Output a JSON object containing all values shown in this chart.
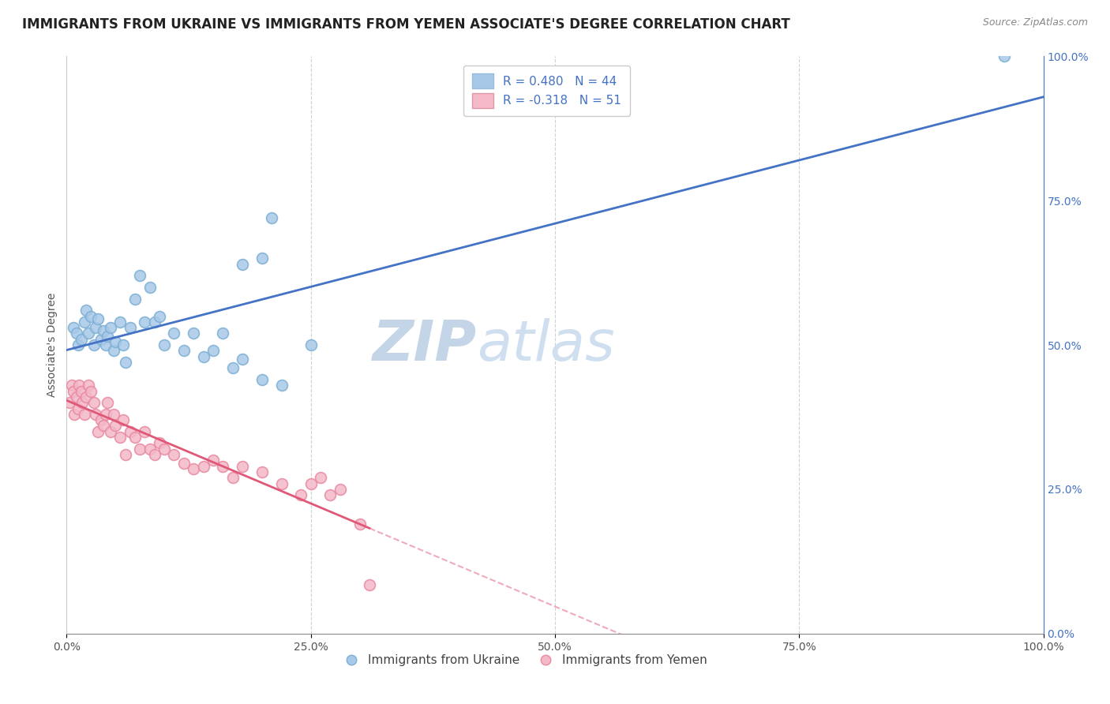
{
  "title": "IMMIGRANTS FROM UKRAINE VS IMMIGRANTS FROM YEMEN ASSOCIATE'S DEGREE CORRELATION CHART",
  "source_text": "Source: ZipAtlas.com",
  "ylabel": "Associate's Degree",
  "watermark_zip": "ZIP",
  "watermark_atlas": "atlas",
  "ukraine_R": 0.48,
  "ukraine_N": 44,
  "yemen_R": -0.318,
  "yemen_N": 51,
  "ukraine_color": "#a8c8e8",
  "ukraine_line_color": "#4472c4",
  "ukraine_edge_color": "#7bafd4",
  "yemen_color": "#f4b8c8",
  "yemen_line_color": "#e05878",
  "yemen_edge_color": "#e888a0",
  "xlim": [
    0.0,
    1.0
  ],
  "ylim": [
    0.0,
    1.0
  ],
  "xtick_labels": [
    "0.0%",
    "25.0%",
    "50.0%",
    "75.0%",
    "100.0%"
  ],
  "xtick_vals": [
    0.0,
    0.25,
    0.5,
    0.75,
    1.0
  ],
  "ytick_labels_right": [
    "0.0%",
    "25.0%",
    "50.0%",
    "75.0%",
    "100.0%"
  ],
  "ytick_vals": [
    0.0,
    0.25,
    0.5,
    0.75,
    1.0
  ],
  "ukraine_x": [
    0.007,
    0.01,
    0.012,
    0.015,
    0.018,
    0.02,
    0.022,
    0.025,
    0.028,
    0.03,
    0.032,
    0.035,
    0.038,
    0.04,
    0.042,
    0.045,
    0.048,
    0.05,
    0.055,
    0.058,
    0.06,
    0.065,
    0.07,
    0.075,
    0.08,
    0.085,
    0.09,
    0.095,
    0.1,
    0.11,
    0.12,
    0.13,
    0.14,
    0.15,
    0.16,
    0.17,
    0.18,
    0.2,
    0.22,
    0.25,
    0.18,
    0.2,
    0.21,
    0.96
  ],
  "ukraine_y": [
    0.53,
    0.52,
    0.5,
    0.51,
    0.54,
    0.56,
    0.52,
    0.55,
    0.5,
    0.53,
    0.545,
    0.51,
    0.525,
    0.5,
    0.515,
    0.53,
    0.49,
    0.505,
    0.54,
    0.5,
    0.47,
    0.53,
    0.58,
    0.62,
    0.54,
    0.6,
    0.54,
    0.55,
    0.5,
    0.52,
    0.49,
    0.52,
    0.48,
    0.49,
    0.52,
    0.46,
    0.475,
    0.44,
    0.43,
    0.5,
    0.64,
    0.65,
    0.72,
    1.0
  ],
  "yemen_x": [
    0.003,
    0.005,
    0.007,
    0.008,
    0.01,
    0.012,
    0.013,
    0.015,
    0.016,
    0.018,
    0.02,
    0.022,
    0.025,
    0.028,
    0.03,
    0.032,
    0.035,
    0.038,
    0.04,
    0.042,
    0.045,
    0.048,
    0.05,
    0.055,
    0.058,
    0.06,
    0.065,
    0.07,
    0.075,
    0.08,
    0.085,
    0.09,
    0.095,
    0.1,
    0.11,
    0.12,
    0.13,
    0.14,
    0.15,
    0.16,
    0.17,
    0.18,
    0.2,
    0.22,
    0.24,
    0.25,
    0.26,
    0.27,
    0.28,
    0.3,
    0.31
  ],
  "yemen_y": [
    0.4,
    0.43,
    0.42,
    0.38,
    0.41,
    0.39,
    0.43,
    0.42,
    0.4,
    0.38,
    0.41,
    0.43,
    0.42,
    0.4,
    0.38,
    0.35,
    0.37,
    0.36,
    0.38,
    0.4,
    0.35,
    0.38,
    0.36,
    0.34,
    0.37,
    0.31,
    0.35,
    0.34,
    0.32,
    0.35,
    0.32,
    0.31,
    0.33,
    0.32,
    0.31,
    0.295,
    0.285,
    0.29,
    0.3,
    0.29,
    0.27,
    0.29,
    0.28,
    0.26,
    0.24,
    0.26,
    0.27,
    0.24,
    0.25,
    0.19,
    0.085
  ],
  "background_color": "#ffffff",
  "grid_color": "#cccccc",
  "legend_ukraine_label": "R = 0.480   N = 44",
  "legend_yemen_label": "R = -0.318   N = 51",
  "title_fontsize": 12,
  "axis_label_fontsize": 10,
  "tick_fontsize": 10,
  "legend_fontsize": 11,
  "watermark_zip_fontsize": 52,
  "watermark_atlas_fontsize": 52,
  "watermark_color": "#c8d8ee",
  "source_fontsize": 9
}
